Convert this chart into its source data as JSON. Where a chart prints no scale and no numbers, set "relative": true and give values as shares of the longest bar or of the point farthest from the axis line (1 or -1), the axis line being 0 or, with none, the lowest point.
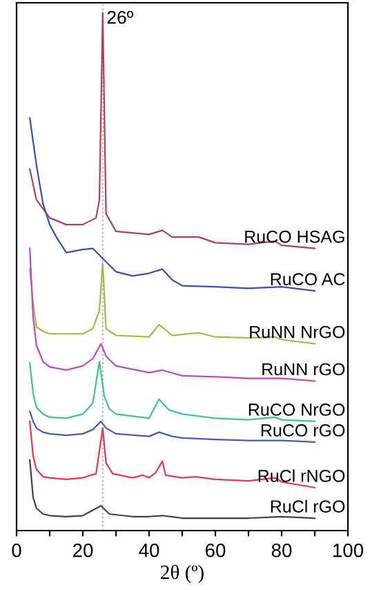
{
  "chart_data": {
    "type": "line",
    "relative": true,
    "xlabel": "2θ (º)",
    "xlim": [
      0,
      100
    ],
    "xticks": [
      0,
      {
        "value": 10,
        "label": null
      },
      20,
      {
        "value": 30,
        "label": null
      },
      40,
      {
        "value": 50,
        "label": null
      },
      60,
      {
        "value": 70,
        "label": null
      },
      80,
      {
        "value": 90,
        "label": null
      },
      100
    ],
    "tick_labels": "x",
    "grid": false,
    "legend": false,
    "marker": "none",
    "line_style": "solid",
    "ref_lines": [
      {
        "axis": "x",
        "value": 26,
        "label": "26º",
        "color": "#b0b0b8",
        "line_style": "dotted"
      }
    ],
    "series": [
      {
        "name": "RuCO HSAG",
        "color": "#b0405a",
        "x": [
          4,
          6,
          10,
          15,
          20,
          24,
          25,
          26,
          27,
          30,
          40,
          44,
          47,
          50,
          55,
          60,
          70,
          78,
          80,
          90
        ],
        "values": [
          0.698,
          0.639,
          0.604,
          0.591,
          0.591,
          0.604,
          0.639,
          1,
          0.612,
          0.578,
          0.572,
          0.58,
          0.567,
          0.567,
          0.567,
          0.556,
          0.553,
          0.559,
          0.551,
          0.545
        ]
      },
      {
        "name": "RuCO AC",
        "color": "#3a50b0",
        "x": [
          4,
          6,
          8,
          10,
          12,
          15,
          20,
          23,
          27,
          30,
          35,
          40,
          44,
          47,
          50,
          60,
          70,
          80,
          90
        ],
        "values": [
          0.797,
          0.706,
          0.631,
          0.591,
          0.567,
          0.537,
          0.543,
          0.545,
          0.519,
          0.5,
          0.492,
          0.497,
          0.505,
          0.484,
          0.473,
          0.471,
          0.468,
          0.471,
          0.463
        ]
      },
      {
        "name": "RuNN NrGO",
        "color": "#a8b848",
        "x": [
          4,
          5,
          6,
          8,
          10,
          20,
          23,
          25,
          26,
          27,
          30,
          40,
          43,
          47,
          55,
          60,
          70,
          78,
          80,
          90
        ],
        "values": [
          0.505,
          0.439,
          0.393,
          0.385,
          0.38,
          0.38,
          0.39,
          0.425,
          0.516,
          0.39,
          0.377,
          0.374,
          0.398,
          0.377,
          0.382,
          0.374,
          0.372,
          0.374,
          0.369,
          0.361
        ]
      },
      {
        "name": "RuNN rGO",
        "color": "#c048c0",
        "x": [
          4,
          5,
          6,
          8,
          10,
          15,
          20,
          23,
          25.5,
          27,
          30,
          40,
          44,
          50,
          60,
          70,
          80,
          90
        ],
        "values": [
          0.545,
          0.412,
          0.358,
          0.326,
          0.316,
          0.31,
          0.318,
          0.332,
          0.361,
          0.337,
          0.318,
          0.305,
          0.31,
          0.299,
          0.297,
          0.294,
          0.294,
          0.289
        ]
      },
      {
        "name": "RuCO NrGO",
        "color": "#40c0a0",
        "x": [
          4,
          5,
          6,
          8,
          10,
          15,
          20,
          23,
          25,
          26.5,
          28,
          30,
          40,
          43,
          46,
          50,
          60,
          70,
          78,
          80,
          90
        ],
        "values": [
          0.324,
          0.265,
          0.238,
          0.225,
          0.219,
          0.217,
          0.225,
          0.246,
          0.326,
          0.259,
          0.235,
          0.225,
          0.217,
          0.254,
          0.233,
          0.225,
          0.217,
          0.214,
          0.219,
          0.214,
          0.211
        ]
      },
      {
        "name": "RuCO rGO",
        "color": "#4858c0",
        "x": [
          4,
          5,
          6,
          8,
          10,
          15,
          20,
          23,
          25.5,
          27,
          30,
          40,
          43,
          47,
          50,
          60,
          70,
          80,
          90
        ],
        "values": [
          0.23,
          0.211,
          0.198,
          0.19,
          0.187,
          0.184,
          0.187,
          0.195,
          0.211,
          0.198,
          0.187,
          0.182,
          0.19,
          0.182,
          0.179,
          0.176,
          0.174,
          0.174,
          0.171
        ]
      },
      {
        "name": "RuCl rNGO",
        "color": "#e03858",
        "x": [
          4,
          5,
          6,
          8,
          10,
          15,
          20,
          24,
          26,
          27,
          29,
          35,
          38,
          40,
          42,
          44,
          45,
          50,
          54,
          60,
          70,
          78,
          80,
          90
        ],
        "values": [
          0.211,
          0.144,
          0.118,
          0.104,
          0.102,
          0.099,
          0.102,
          0.11,
          0.198,
          0.131,
          0.11,
          0.102,
          0.107,
          0.102,
          0.112,
          0.134,
          0.107,
          0.102,
          0.104,
          0.099,
          0.096,
          0.102,
          0.094,
          0.083
        ]
      },
      {
        "name": "RuCl rGO",
        "color": "#404048",
        "x": [
          4,
          5,
          6,
          8,
          10,
          15,
          20,
          25.5,
          28,
          35,
          40,
          44,
          50,
          60,
          70,
          80,
          90
        ],
        "values": [
          0.136,
          0.064,
          0.043,
          0.032,
          0.029,
          0.027,
          0.029,
          0.048,
          0.032,
          0.027,
          0.027,
          0.029,
          0.024,
          0.024,
          0.024,
          0.027,
          0.024
        ]
      }
    ]
  }
}
